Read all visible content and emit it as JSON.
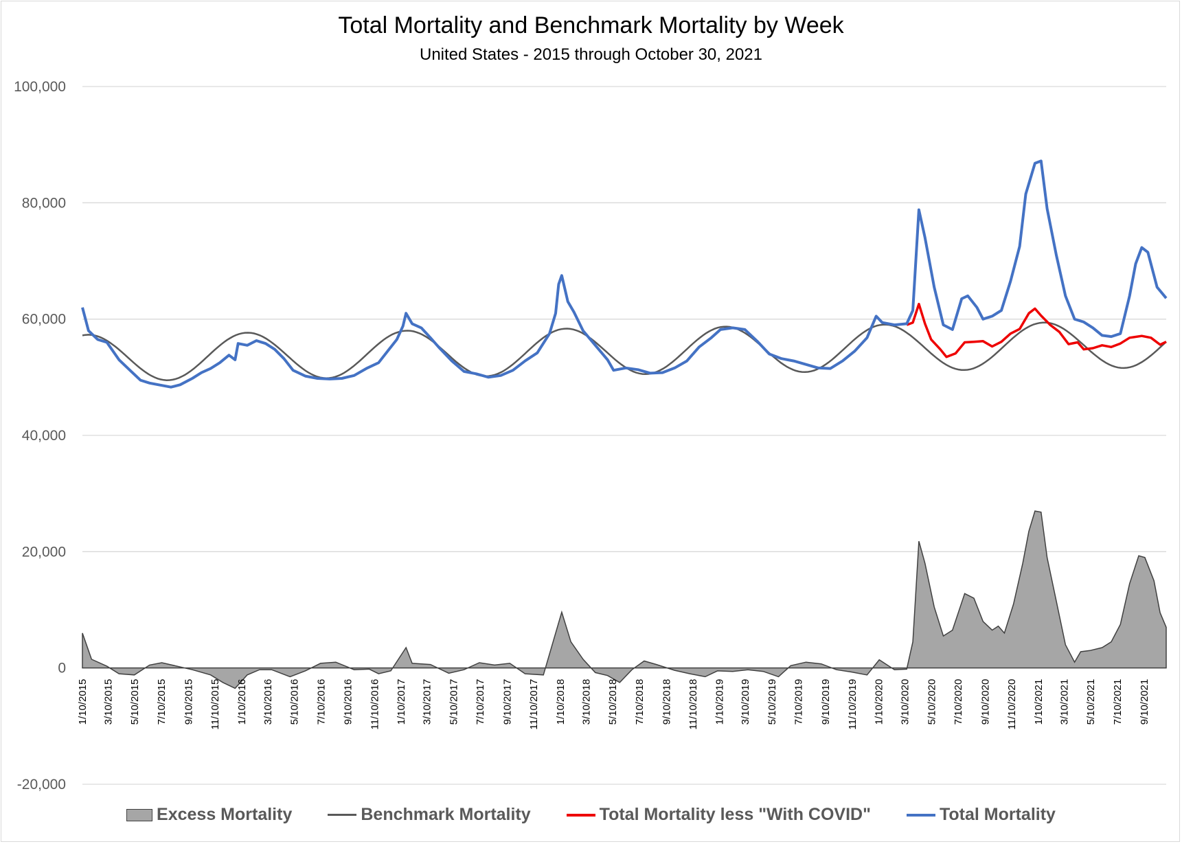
{
  "chart_data": {
    "type": "line",
    "title": "Total Mortality and Benchmark Mortality by Week",
    "subtitle": "United States - 2015 through October 30, 2021",
    "ylim": [
      -20000,
      100000
    ],
    "yticks": [
      -20000,
      0,
      20000,
      40000,
      60000,
      80000,
      100000
    ],
    "ytick_labels": [
      "-20,000",
      "0",
      "20,000",
      "40,000",
      "60,000",
      "80,000",
      "100,000"
    ],
    "x_range": [
      "2015-01-10",
      "2021-10-30"
    ],
    "x_ticks": [
      "1/10/2015",
      "3/10/2015",
      "5/10/2015",
      "7/10/2015",
      "9/10/2015",
      "11/10/2015",
      "1/10/2016",
      "3/10/2016",
      "5/10/2016",
      "7/10/2016",
      "9/10/2016",
      "11/10/2016",
      "1/10/2017",
      "3/10/2017",
      "5/10/2017",
      "7/10/2017",
      "9/10/2017",
      "11/10/2017",
      "1/10/2018",
      "3/10/2018",
      "5/10/2018",
      "7/10/2018",
      "9/10/2018",
      "11/10/2018",
      "1/10/2019",
      "3/10/2019",
      "5/10/2019",
      "7/10/2019",
      "9/10/2019",
      "11/10/2019",
      "1/10/2020",
      "3/10/2020",
      "5/10/2020",
      "7/10/2020",
      "9/10/2020",
      "11/10/2020",
      "1/10/2021",
      "3/10/2021",
      "5/10/2021",
      "7/10/2021",
      "9/10/2021"
    ],
    "grid": true,
    "legend_position": "bottom",
    "colors": {
      "excess_fill": "#a6a6a6",
      "excess_line": "#404040",
      "benchmark": "#595959",
      "less_covid": "#ee0000",
      "total": "#4472c4",
      "grid": "#d9d9d9"
    },
    "series": [
      {
        "name": "Total Mortality",
        "kind": "line",
        "points": [
          [
            "2015-01-10",
            62000
          ],
          [
            "2015-01-24",
            58000
          ],
          [
            "2015-02-14",
            56500
          ],
          [
            "2015-03-07",
            56000
          ],
          [
            "2015-04-04",
            53000
          ],
          [
            "2015-05-02",
            51000
          ],
          [
            "2015-05-23",
            49500
          ],
          [
            "2015-06-13",
            49000
          ],
          [
            "2015-07-11",
            48600
          ],
          [
            "2015-08-01",
            48300
          ],
          [
            "2015-08-22",
            48700
          ],
          [
            "2015-09-19",
            49800
          ],
          [
            "2015-10-10",
            50800
          ],
          [
            "2015-10-31",
            51500
          ],
          [
            "2015-11-21",
            52500
          ],
          [
            "2015-12-12",
            53800
          ],
          [
            "2015-12-26",
            53000
          ],
          [
            "2016-01-02",
            55800
          ],
          [
            "2016-01-23",
            55500
          ],
          [
            "2016-02-13",
            56300
          ],
          [
            "2016-03-05",
            55800
          ],
          [
            "2016-03-26",
            54800
          ],
          [
            "2016-04-16",
            53200
          ],
          [
            "2016-05-07",
            51200
          ],
          [
            "2016-06-04",
            50200
          ],
          [
            "2016-07-02",
            49800
          ],
          [
            "2016-07-30",
            49700
          ],
          [
            "2016-08-27",
            49800
          ],
          [
            "2016-09-24",
            50300
          ],
          [
            "2016-10-22",
            51500
          ],
          [
            "2016-11-19",
            52500
          ],
          [
            "2016-12-10",
            54500
          ],
          [
            "2016-12-31",
            56500
          ],
          [
            "2017-01-14",
            58800
          ],
          [
            "2017-01-21",
            61000
          ],
          [
            "2017-02-04",
            59200
          ],
          [
            "2017-02-25",
            58500
          ],
          [
            "2017-03-18",
            56800
          ],
          [
            "2017-04-08",
            55000
          ],
          [
            "2017-05-06",
            52800
          ],
          [
            "2017-06-03",
            51000
          ],
          [
            "2017-07-01",
            50600
          ],
          [
            "2017-07-29",
            50000
          ],
          [
            "2017-08-26",
            50300
          ],
          [
            "2017-09-23",
            51200
          ],
          [
            "2017-10-21",
            52800
          ],
          [
            "2017-11-18",
            54200
          ],
          [
            "2017-12-16",
            57500
          ],
          [
            "2017-12-30",
            61000
          ],
          [
            "2018-01-06",
            66000
          ],
          [
            "2018-01-13",
            67500
          ],
          [
            "2018-01-27",
            63000
          ],
          [
            "2018-02-10",
            61200
          ],
          [
            "2018-03-03",
            58000
          ],
          [
            "2018-03-31",
            55500
          ],
          [
            "2018-04-28",
            53000
          ],
          [
            "2018-05-12",
            51200
          ],
          [
            "2018-06-09",
            51600
          ],
          [
            "2018-07-07",
            51300
          ],
          [
            "2018-08-04",
            50700
          ],
          [
            "2018-09-01",
            50800
          ],
          [
            "2018-09-29",
            51600
          ],
          [
            "2018-10-27",
            52800
          ],
          [
            "2018-11-24",
            55200
          ],
          [
            "2018-12-22",
            56800
          ],
          [
            "2019-01-12",
            58200
          ],
          [
            "2019-02-09",
            58500
          ],
          [
            "2019-03-09",
            58200
          ],
          [
            "2019-04-06",
            56200
          ],
          [
            "2019-05-04",
            54000
          ],
          [
            "2019-06-01",
            53200
          ],
          [
            "2019-06-29",
            52800
          ],
          [
            "2019-07-27",
            52200
          ],
          [
            "2019-08-24",
            51600
          ],
          [
            "2019-09-21",
            51500
          ],
          [
            "2019-10-19",
            52800
          ],
          [
            "2019-11-16",
            54500
          ],
          [
            "2019-12-14",
            56800
          ],
          [
            "2020-01-04",
            60500
          ],
          [
            "2020-01-18",
            59400
          ],
          [
            "2020-02-15",
            59000
          ],
          [
            "2020-03-14",
            59200
          ],
          [
            "2020-03-28",
            61500
          ],
          [
            "2020-04-11",
            78800
          ],
          [
            "2020-04-25",
            74000
          ],
          [
            "2020-05-16",
            65500
          ],
          [
            "2020-06-06",
            59000
          ],
          [
            "2020-06-27",
            58200
          ],
          [
            "2020-07-18",
            63500
          ],
          [
            "2020-08-01",
            64000
          ],
          [
            "2020-08-22",
            62000
          ],
          [
            "2020-09-05",
            60000
          ],
          [
            "2020-09-26",
            60500
          ],
          [
            "2020-10-17",
            61500
          ],
          [
            "2020-11-07",
            66500
          ],
          [
            "2020-11-28",
            72500
          ],
          [
            "2020-12-12",
            81500
          ],
          [
            "2021-01-02",
            86800
          ],
          [
            "2021-01-16",
            87200
          ],
          [
            "2021-01-30",
            79000
          ],
          [
            "2021-02-20",
            71000
          ],
          [
            "2021-03-13",
            64000
          ],
          [
            "2021-04-03",
            60000
          ],
          [
            "2021-04-24",
            59500
          ],
          [
            "2021-05-15",
            58500
          ],
          [
            "2021-06-05",
            57200
          ],
          [
            "2021-06-26",
            57000
          ],
          [
            "2021-07-17",
            57500
          ],
          [
            "2021-08-07",
            64000
          ],
          [
            "2021-08-21",
            69500
          ],
          [
            "2021-09-04",
            72300
          ],
          [
            "2021-09-18",
            71500
          ],
          [
            "2021-10-09",
            65500
          ],
          [
            "2021-10-30",
            63600
          ]
        ]
      },
      {
        "name": "Total Mortality less \"With COVID\"",
        "kind": "line",
        "points": [
          [
            "2020-03-14",
            59000
          ],
          [
            "2020-03-28",
            59400
          ],
          [
            "2020-04-11",
            62600
          ],
          [
            "2020-04-25",
            59200
          ],
          [
            "2020-05-09",
            56500
          ],
          [
            "2020-05-30",
            54800
          ],
          [
            "2020-06-13",
            53500
          ],
          [
            "2020-07-04",
            54100
          ],
          [
            "2020-07-25",
            56000
          ],
          [
            "2020-08-15",
            56100
          ],
          [
            "2020-09-05",
            56200
          ],
          [
            "2020-09-26",
            55300
          ],
          [
            "2020-10-17",
            56100
          ],
          [
            "2020-11-07",
            57500
          ],
          [
            "2020-11-28",
            58300
          ],
          [
            "2020-12-19",
            61000
          ],
          [
            "2021-01-02",
            61800
          ],
          [
            "2021-01-16",
            60600
          ],
          [
            "2021-02-06",
            59000
          ],
          [
            "2021-02-27",
            57800
          ],
          [
            "2021-03-20",
            55700
          ],
          [
            "2021-04-10",
            56000
          ],
          [
            "2021-04-24",
            54800
          ],
          [
            "2021-05-15",
            55000
          ],
          [
            "2021-06-05",
            55500
          ],
          [
            "2021-06-26",
            55200
          ],
          [
            "2021-07-17",
            55800
          ],
          [
            "2021-08-07",
            56800
          ],
          [
            "2021-09-04",
            57100
          ],
          [
            "2021-09-25",
            56800
          ],
          [
            "2021-10-16",
            55600
          ],
          [
            "2021-10-30",
            56100
          ]
        ]
      },
      {
        "name": "Benchmark Mortality",
        "kind": "sinusoid",
        "mean": 53300,
        "amplitude": 4000,
        "peak_fraction_of_year": 0.06,
        "trend_per_year": 350
      },
      {
        "name": "Excess Mortality",
        "kind": "area",
        "definition": "Total Mortality minus Benchmark Mortality",
        "points": [
          [
            "2015-01-10",
            6000
          ],
          [
            "2015-01-31",
            1500
          ],
          [
            "2015-03-07",
            300
          ],
          [
            "2015-04-04",
            -1000
          ],
          [
            "2015-05-09",
            -1200
          ],
          [
            "2015-06-13",
            500
          ],
          [
            "2015-07-11",
            900
          ],
          [
            "2015-08-15",
            300
          ],
          [
            "2015-09-19",
            -300
          ],
          [
            "2015-10-31",
            -1200
          ],
          [
            "2015-11-28",
            -2500
          ],
          [
            "2015-12-26",
            -3500
          ],
          [
            "2016-01-23",
            -1200
          ],
          [
            "2016-02-20",
            -300
          ],
          [
            "2016-03-19",
            -300
          ],
          [
            "2016-04-30",
            -1500
          ],
          [
            "2016-06-04",
            -500
          ],
          [
            "2016-07-09",
            800
          ],
          [
            "2016-08-13",
            1000
          ],
          [
            "2016-09-24",
            -300
          ],
          [
            "2016-10-29",
            -200
          ],
          [
            "2016-11-19",
            -1000
          ],
          [
            "2016-12-17",
            -500
          ],
          [
            "2017-01-21",
            3500
          ],
          [
            "2017-02-04",
            800
          ],
          [
            "2017-03-18",
            600
          ],
          [
            "2017-04-29",
            -900
          ],
          [
            "2017-06-03",
            -300
          ],
          [
            "2017-07-08",
            900
          ],
          [
            "2017-08-12",
            500
          ],
          [
            "2017-09-16",
            800
          ],
          [
            "2017-10-21",
            -1000
          ],
          [
            "2017-12-02",
            -1200
          ],
          [
            "2018-01-13",
            9600
          ],
          [
            "2018-02-03",
            4500
          ],
          [
            "2018-03-03",
            1500
          ],
          [
            "2018-03-31",
            -800
          ],
          [
            "2018-04-28",
            -1300
          ],
          [
            "2018-05-26",
            -2500
          ],
          [
            "2018-06-23",
            -300
          ],
          [
            "2018-07-21",
            1200
          ],
          [
            "2018-08-18",
            600
          ],
          [
            "2018-09-29",
            -400
          ],
          [
            "2018-11-03",
            -1000
          ],
          [
            "2018-12-08",
            -1500
          ],
          [
            "2019-01-05",
            -500
          ],
          [
            "2019-02-09",
            -600
          ],
          [
            "2019-03-16",
            -300
          ],
          [
            "2019-04-20",
            -600
          ],
          [
            "2019-05-25",
            -1500
          ],
          [
            "2019-06-22",
            400
          ],
          [
            "2019-07-27",
            1000
          ],
          [
            "2019-08-31",
            700
          ],
          [
            "2019-10-05",
            -300
          ],
          [
            "2019-11-09",
            -700
          ],
          [
            "2019-12-14",
            -1200
          ],
          [
            "2020-01-11",
            1400
          ],
          [
            "2020-02-15",
            -300
          ],
          [
            "2020-03-14",
            -200
          ],
          [
            "2020-03-28",
            4500
          ],
          [
            "2020-04-11",
            21800
          ],
          [
            "2020-04-25",
            18000
          ],
          [
            "2020-05-16",
            10500
          ],
          [
            "2020-06-06",
            5500
          ],
          [
            "2020-06-27",
            6500
          ],
          [
            "2020-07-25",
            12800
          ],
          [
            "2020-08-15",
            12000
          ],
          [
            "2020-09-05",
            8000
          ],
          [
            "2020-09-26",
            6500
          ],
          [
            "2020-10-10",
            7200
          ],
          [
            "2020-10-24",
            6000
          ],
          [
            "2020-11-14",
            11000
          ],
          [
            "2020-12-05",
            18000
          ],
          [
            "2020-12-19",
            23500
          ],
          [
            "2021-01-02",
            27000
          ],
          [
            "2021-01-16",
            26800
          ],
          [
            "2021-01-30",
            19000
          ],
          [
            "2021-02-20",
            11500
          ],
          [
            "2021-03-13",
            4000
          ],
          [
            "2021-04-03",
            1000
          ],
          [
            "2021-04-17",
            2800
          ],
          [
            "2021-05-08",
            3000
          ],
          [
            "2021-06-05",
            3500
          ],
          [
            "2021-06-26",
            4500
          ],
          [
            "2021-07-17",
            7500
          ],
          [
            "2021-08-07",
            14500
          ],
          [
            "2021-08-28",
            19300
          ],
          [
            "2021-09-11",
            19000
          ],
          [
            "2021-10-02",
            15000
          ],
          [
            "2021-10-16",
            9500
          ],
          [
            "2021-10-30",
            7000
          ]
        ]
      }
    ]
  },
  "legend": {
    "excess": "Excess Mortality",
    "benchmark": "Benchmark Mortality",
    "less_covid": "Total Mortality less \"With COVID\"",
    "total": "Total Mortality"
  }
}
